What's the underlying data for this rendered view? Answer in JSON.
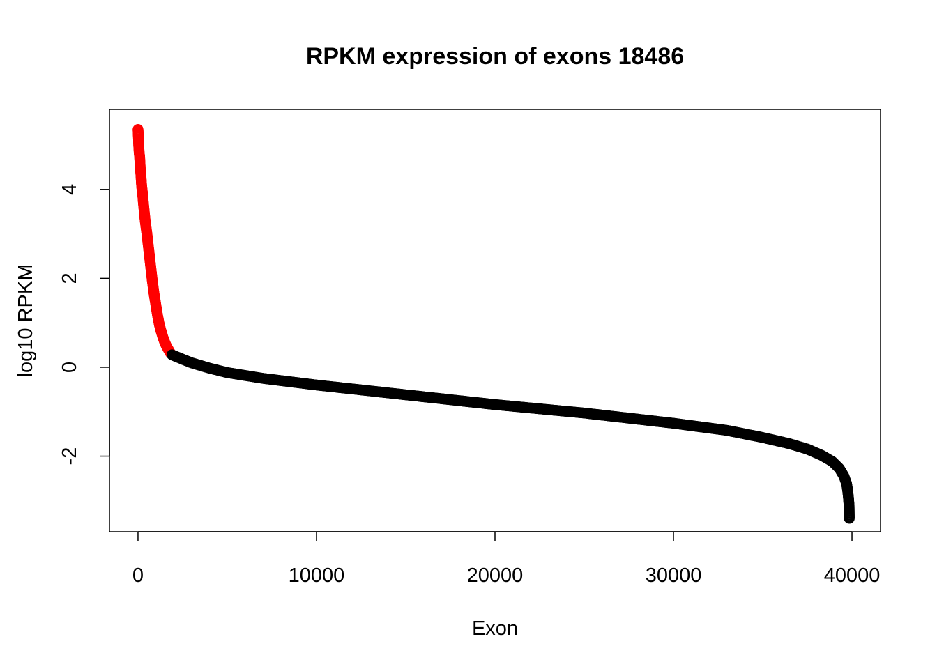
{
  "chart_data": {
    "type": "scatter",
    "title": "RPKM expression of exons 18486",
    "xlabel": "Exon",
    "ylabel": "log10 RPKM",
    "xlim": [
      -1600,
      41600
    ],
    "ylim": [
      -3.7,
      5.8
    ],
    "x_ticks": [
      0,
      10000,
      20000,
      30000,
      40000
    ],
    "y_ticks": [
      -2,
      0,
      2,
      4
    ],
    "x_tick_labels": [
      "0",
      "10000",
      "20000",
      "30000",
      "40000"
    ],
    "y_tick_labels": [
      "-2",
      "0",
      "2",
      "4"
    ],
    "grid": false,
    "legend": "none",
    "n_points": 39850,
    "highlight_count": 1850,
    "series": [
      {
        "color": "#ff0000",
        "marker": "open-circle",
        "points": [
          [
            0,
            5.35
          ],
          [
            10,
            5.28
          ],
          [
            20,
            5.2
          ],
          [
            40,
            4.98
          ],
          [
            55,
            4.9
          ],
          [
            70,
            4.8
          ],
          [
            90,
            4.75
          ],
          [
            110,
            4.6
          ],
          [
            130,
            4.45
          ],
          [
            150,
            4.4
          ],
          [
            170,
            4.28
          ],
          [
            190,
            4.15
          ],
          [
            210,
            4.05
          ],
          [
            240,
            3.95
          ],
          [
            270,
            3.85
          ],
          [
            300,
            3.7
          ],
          [
            350,
            3.5
          ],
          [
            400,
            3.3
          ],
          [
            500,
            3.0
          ],
          [
            600,
            2.65
          ],
          [
            700,
            2.3
          ],
          [
            800,
            1.95
          ],
          [
            900,
            1.65
          ],
          [
            1000,
            1.4
          ],
          [
            1100,
            1.15
          ],
          [
            1200,
            0.95
          ],
          [
            1300,
            0.8
          ],
          [
            1400,
            0.67
          ],
          [
            1500,
            0.56
          ],
          [
            1600,
            0.47
          ],
          [
            1700,
            0.4
          ],
          [
            1800,
            0.33
          ],
          [
            1850,
            0.3
          ]
        ]
      },
      {
        "color": "#000000",
        "marker": "open-circle",
        "points": [
          [
            1900,
            0.28
          ],
          [
            2500,
            0.18
          ],
          [
            3000,
            0.1
          ],
          [
            4000,
            -0.02
          ],
          [
            5000,
            -0.12
          ],
          [
            7000,
            -0.25
          ],
          [
            10000,
            -0.4
          ],
          [
            15000,
            -0.62
          ],
          [
            20000,
            -0.84
          ],
          [
            25000,
            -1.03
          ],
          [
            30000,
            -1.26
          ],
          [
            33000,
            -1.42
          ],
          [
            35000,
            -1.58
          ],
          [
            36500,
            -1.72
          ],
          [
            37500,
            -1.84
          ],
          [
            38300,
            -1.98
          ],
          [
            38900,
            -2.12
          ],
          [
            39300,
            -2.28
          ],
          [
            39550,
            -2.45
          ],
          [
            39700,
            -2.62
          ],
          [
            39760,
            -2.78
          ],
          [
            39800,
            -2.92
          ],
          [
            39820,
            -3.02
          ],
          [
            39840,
            -3.12
          ],
          [
            39850,
            -3.4
          ]
        ]
      }
    ]
  }
}
